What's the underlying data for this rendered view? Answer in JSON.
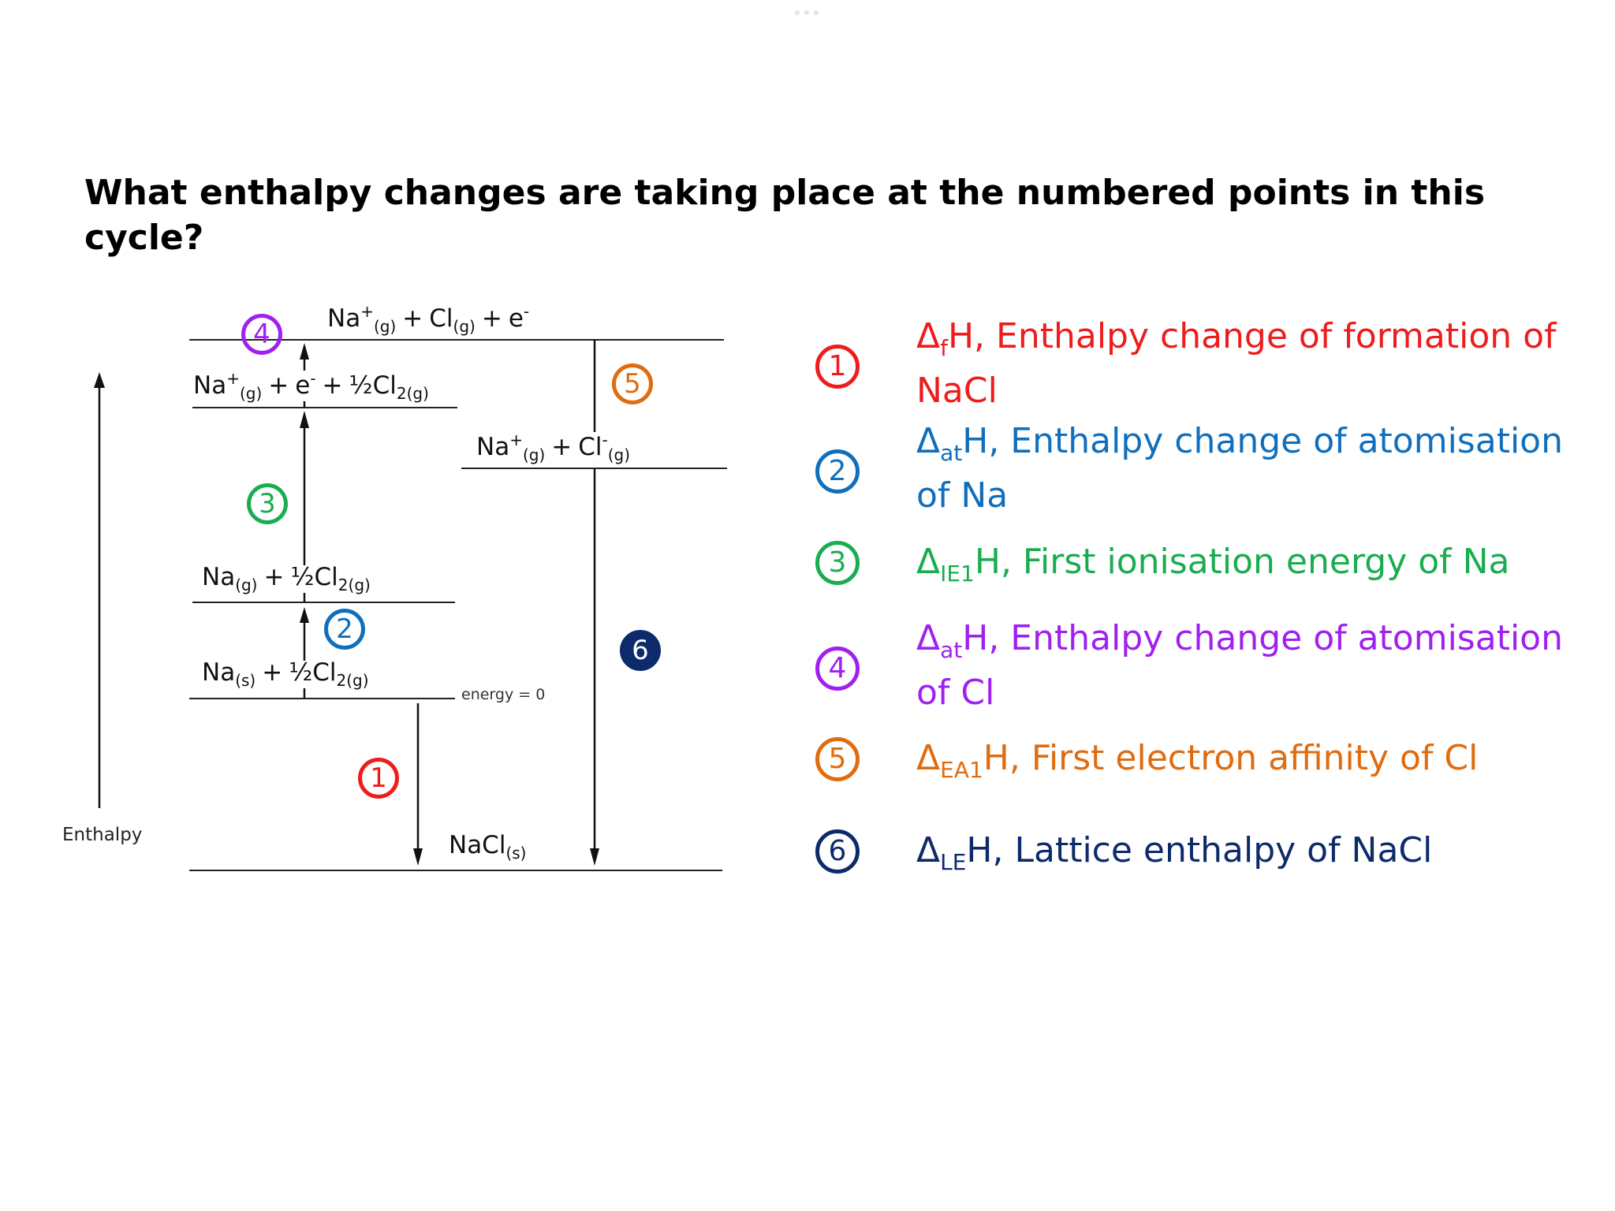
{
  "question": "What enthalpy changes are taking place at the numbered points in this cycle?",
  "diagram": {
    "levels": {
      "top": {
        "a": "Na",
        "a_sup": "+",
        "a_sub": "(g)",
        "plus1": "+",
        "b": "Cl",
        "b_sub": "(g)",
        "plus2": "+",
        "c": "e",
        "c_sup": "-"
      },
      "ionised": {
        "a": "Na",
        "a_sup": "+",
        "a_sub": "(g)",
        "plus1": "+",
        "b": "e",
        "b_sup": "-",
        "plus2": "+",
        "c": "½Cl",
        "c_sub": "2(g)"
      },
      "ions": {
        "a": "Na",
        "a_sup": "+",
        "a_sub": "(g)",
        "plus1": "+",
        "b": "Cl",
        "b_sup": "-",
        "b_sub": "(g)"
      },
      "atomised": {
        "a": "Na",
        "a_sub": "(g)",
        "plus1": "+",
        "b": "½Cl",
        "b_sub": "2(g)"
      },
      "elements": {
        "a": "Na",
        "a_sub": "(s)",
        "plus1": "+",
        "b": "½Cl",
        "b_sub": "2(g)"
      },
      "product": {
        "a": "NaCl",
        "a_sub": "(s)"
      }
    },
    "energy_zero_label": "energy = 0",
    "axis_label": "Enthalpy",
    "markers": [
      "1",
      "2",
      "3",
      "4",
      "5",
      "6"
    ]
  },
  "legend": [
    {
      "num": "1",
      "delta": "Δ",
      "sub": "f",
      "text": "H, Enthalpy change of formation of NaCl",
      "color": "#ee1c1c"
    },
    {
      "num": "2",
      "delta": "Δ",
      "sub": "at",
      "text": "H, Enthalpy change of atomisation of Na",
      "color": "#0f6fbd"
    },
    {
      "num": "3",
      "delta": "Δ",
      "sub": "IE1",
      "text": "H, First ionisation energy of Na",
      "color": "#19ad50"
    },
    {
      "num": "4",
      "delta": "Δ",
      "sub": "at",
      "text": "H, Enthalpy change of atomisation of Cl",
      "color": "#a020f0"
    },
    {
      "num": "5",
      "delta": "Δ",
      "sub": "EA1",
      "text": "H, First electron affinity of Cl",
      "color": "#e06c10"
    },
    {
      "num": "6",
      "delta": "Δ",
      "sub": "LE",
      "text": "H, Lattice enthalpy of NaCl",
      "color": "#0d2a6b"
    }
  ]
}
